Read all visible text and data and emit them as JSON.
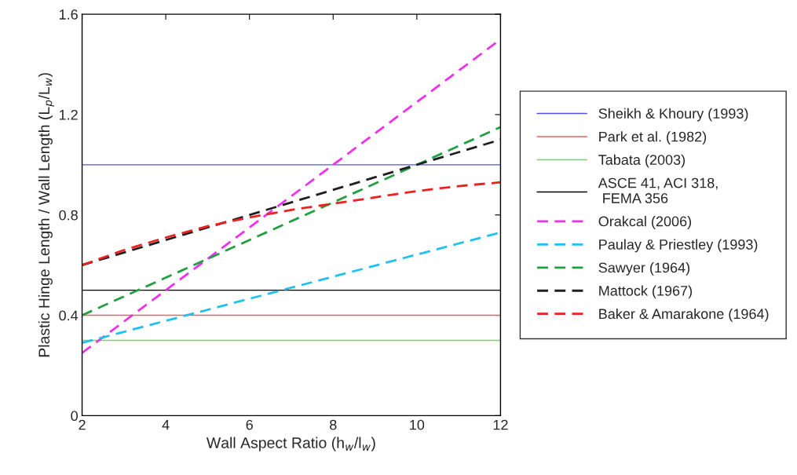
{
  "chart_data": {
    "type": "line",
    "xlabel": "Wall Aspect Ratio (h$_{w}$/l$_{w}$)",
    "ylabel": "Plastic Hinge Length / Wall Length (L$_{p}$/L$_{w}$)",
    "xlim": [
      2,
      12
    ],
    "ylim": [
      0,
      1.6
    ],
    "xticks": [
      2,
      4,
      6,
      8,
      10,
      12
    ],
    "yticks": [
      0,
      0.4,
      0.8,
      1.2,
      1.6
    ],
    "grid": false,
    "legend": "right",
    "marker": "none",
    "series": [
      {
        "name": "Sheikh & Khoury (1993)",
        "color": "#5050f0",
        "line_style": "solid",
        "x": [
          2,
          12
        ],
        "values": [
          1.0,
          1.0
        ]
      },
      {
        "name": "Park et al. (1982)",
        "color": "#f06060",
        "line_style": "solid",
        "x": [
          2,
          12
        ],
        "values": [
          0.4,
          0.4
        ]
      },
      {
        "name": "Tabata (2003)",
        "color": "#60e060",
        "line_style": "solid",
        "x": [
          2,
          12
        ],
        "values": [
          0.3,
          0.3
        ]
      },
      {
        "name": "ASCE 41, ACI 318,\n FEMA 356",
        "color": "#000000",
        "line_style": "solid",
        "x": [
          2,
          12
        ],
        "values": [
          0.5,
          0.5
        ]
      },
      {
        "name": "Orakcal (2006)",
        "color": "#f030f0",
        "line_style": "dashed",
        "x": [
          2,
          12
        ],
        "values": [
          0.25,
          1.5
        ]
      },
      {
        "name": "Paulay & Priestley (1993)",
        "color": "#20c0f0",
        "line_style": "dashed",
        "x": [
          2,
          12
        ],
        "values": [
          0.29,
          0.73
        ]
      },
      {
        "name": "Sawyer (1964)",
        "color": "#20a040",
        "line_style": "dashed",
        "x": [
          2,
          12
        ],
        "values": [
          0.4,
          1.15
        ]
      },
      {
        "name": "Mattock (1967)",
        "color": "#202020",
        "line_style": "dashed",
        "x": [
          2,
          12
        ],
        "values": [
          0.6,
          1.1
        ]
      },
      {
        "name": "Baker & Amarakone (1964)",
        "color": "#f02020",
        "line_style": "dashed",
        "x": [
          2,
          3,
          4,
          5,
          6,
          7,
          8,
          9,
          10,
          11,
          12
        ],
        "values": [
          0.6,
          0.66,
          0.71,
          0.755,
          0.79,
          0.82,
          0.845,
          0.87,
          0.895,
          0.915,
          0.93
        ]
      }
    ]
  }
}
